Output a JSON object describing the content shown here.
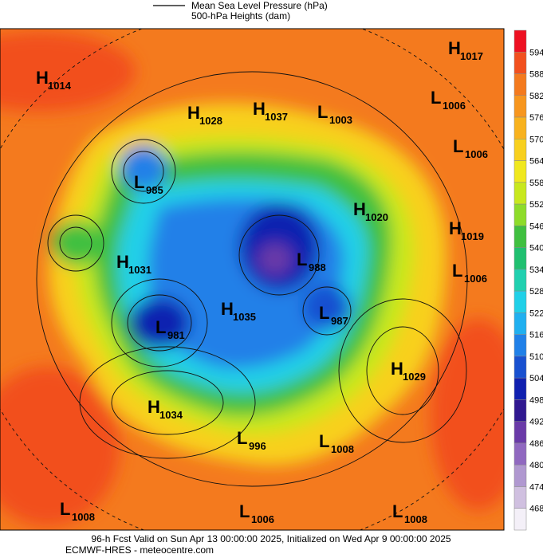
{
  "header": {
    "legend": [
      "Mean Sea Level Pressure (hPa)",
      "500-hPa Heights (dam)"
    ]
  },
  "map": {
    "centers": [
      {
        "letter": "H",
        "value": 1017
      },
      {
        "letter": "L",
        "value": 1006
      },
      {
        "letter": "H",
        "value": 1014
      },
      {
        "letter": "H",
        "value": 1028
      },
      {
        "letter": "H",
        "value": 1037
      },
      {
        "letter": "L",
        "value": 1003
      },
      {
        "letter": "L",
        "value": 1006
      },
      {
        "letter": "L",
        "value": 985
      },
      {
        "letter": "H",
        "value": 1020
      },
      {
        "letter": "H",
        "value": 1019
      },
      {
        "letter": "H",
        "value": 1031
      },
      {
        "letter": "L",
        "value": 988
      },
      {
        "letter": "L",
        "value": 1006
      },
      {
        "letter": "H",
        "value": 1035
      },
      {
        "letter": "L",
        "value": 987
      },
      {
        "letter": "L",
        "value": 981
      },
      {
        "letter": "H",
        "value": 1029
      },
      {
        "letter": "H",
        "value": 1034
      },
      {
        "letter": "L",
        "value": 996
      },
      {
        "letter": "L",
        "value": 1008
      },
      {
        "letter": "L",
        "value": 1008
      },
      {
        "letter": "L",
        "value": 1006
      },
      {
        "letter": "L",
        "value": 1008
      }
    ]
  },
  "colorbar": {
    "levels": [
      594,
      588,
      582,
      576,
      570,
      564,
      558,
      552,
      546,
      540,
      534,
      528,
      522,
      516,
      510,
      504,
      498,
      492,
      486,
      480,
      474,
      468
    ],
    "colors": [
      "#ee1122",
      "#f2501e",
      "#f47a1e",
      "#f7961e",
      "#f8b21e",
      "#f8d01e",
      "#f0e81e",
      "#c8e81e",
      "#8edc2a",
      "#40c040",
      "#20c070",
      "#20d0b0",
      "#20d0e8",
      "#20b0f0",
      "#2080e8",
      "#1850d0",
      "#1020b0",
      "#301890",
      "#6a3aa8",
      "#9068c0",
      "#b098d0",
      "#d0c0e0",
      "#f4f0f8"
    ]
  },
  "footer": {
    "lines": [
      "96-h Fcst Valid on Sun Apr 13 00:00:00 2025, Initialized on Wed Apr  9 00:00:00 2025",
      "ECMWF-HRES  - meteocentre.com"
    ]
  }
}
